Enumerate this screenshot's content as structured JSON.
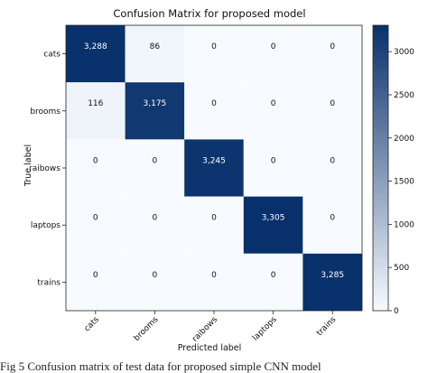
{
  "chart_data": {
    "type": "heatmap",
    "title": "Confusion Matrix for proposed model",
    "xlabel": "Predicted label",
    "ylabel": "True label",
    "classes": [
      "cats",
      "brooms",
      "raibows",
      "laptops",
      "trains"
    ],
    "matrix": [
      [
        3288,
        86,
        0,
        0,
        0
      ],
      [
        116,
        3175,
        0,
        0,
        0
      ],
      [
        0,
        0,
        3245,
        0,
        0
      ],
      [
        0,
        0,
        0,
        3305,
        0
      ],
      [
        0,
        0,
        0,
        0,
        3285
      ]
    ],
    "cell_labels": [
      [
        "3,288",
        "86",
        "0",
        "0",
        "0"
      ],
      [
        "116",
        "3,175",
        "0",
        "0",
        "0"
      ],
      [
        "0",
        "0",
        "3,245",
        "0",
        "0"
      ],
      [
        "0",
        "0",
        "0",
        "3,305",
        "0"
      ],
      [
        "0",
        "0",
        "0",
        "0",
        "3,285"
      ]
    ],
    "colorbar": {
      "ticks": [
        0,
        500,
        1000,
        1500,
        2000,
        2500,
        3000
      ],
      "range": [
        0,
        3305
      ]
    },
    "colors": {
      "low": "#f7fbff",
      "high": "#08306b"
    }
  },
  "caption": "Fig 5    Confusion matrix of test data for proposed simple CNN model"
}
